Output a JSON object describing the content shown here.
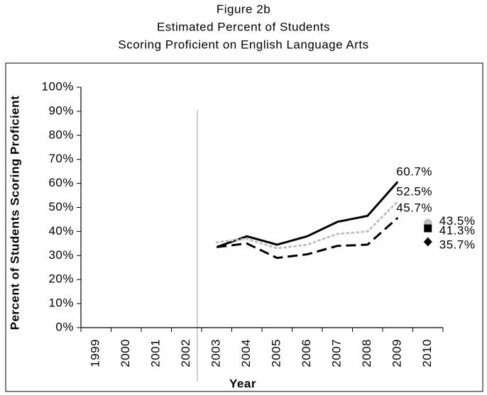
{
  "chart_data": {
    "type": "line",
    "title": [
      "Figure 2b",
      "Estimated Percent of Students",
      "Scoring Proficient on English Language Arts"
    ],
    "ylabel": "Percent of Students Scoring Proficient",
    "xlabel": "Year",
    "categories": [
      "1999",
      "2000",
      "2001",
      "2002",
      "2003",
      "2004",
      "2005",
      "2006",
      "2007",
      "2008",
      "2009",
      "2010"
    ],
    "ylim": [
      0,
      100
    ],
    "yticks": [
      {
        "value": 0,
        "label": "0%"
      },
      {
        "value": 10,
        "label": "10%"
      },
      {
        "value": 20,
        "label": "20%"
      },
      {
        "value": 30,
        "label": "30%"
      },
      {
        "value": 40,
        "label": "40%"
      },
      {
        "value": 50,
        "label": "50%"
      },
      {
        "value": 60,
        "label": "60%"
      },
      {
        "value": 70,
        "label": "70%"
      },
      {
        "value": 80,
        "label": "80%"
      },
      {
        "value": 90,
        "label": "90%"
      },
      {
        "value": 100,
        "label": "100%"
      }
    ],
    "series": [
      {
        "color": "#000000",
        "dash": "solid",
        "values": [
          null,
          null,
          null,
          null,
          33.5,
          38,
          34.5,
          38,
          44,
          46.5,
          60.7,
          null
        ],
        "value_labels": [
          null,
          null,
          null,
          null,
          null,
          null,
          null,
          null,
          null,
          null,
          "60.7%",
          null
        ]
      },
      {
        "color": "#bfbfbf",
        "dash": "dotted",
        "values": [
          null,
          null,
          null,
          null,
          35.5,
          37,
          33,
          34.5,
          39,
          40,
          52.5,
          null
        ],
        "value_labels": [
          null,
          null,
          null,
          null,
          null,
          null,
          null,
          null,
          null,
          null,
          "52.5%",
          null
        ]
      },
      {
        "color": "#000000",
        "dash": "dashed",
        "values": [
          null,
          null,
          null,
          null,
          33.5,
          35,
          29,
          30.5,
          34,
          34.5,
          45.7,
          null
        ],
        "value_labels": [
          null,
          null,
          null,
          null,
          null,
          null,
          null,
          null,
          null,
          null,
          "45.7%",
          null
        ]
      },
      {
        "color": "#bfbfbf",
        "marker": "circle",
        "values": [
          null,
          null,
          null,
          null,
          null,
          null,
          null,
          null,
          null,
          null,
          null,
          43.5
        ],
        "value_labels": [
          null,
          null,
          null,
          null,
          null,
          null,
          null,
          null,
          null,
          null,
          null,
          "43.5%"
        ]
      },
      {
        "color": "#000000",
        "marker": "square",
        "values": [
          null,
          null,
          null,
          null,
          null,
          null,
          null,
          null,
          null,
          null,
          null,
          41.3
        ],
        "value_labels": [
          null,
          null,
          null,
          null,
          null,
          null,
          null,
          null,
          null,
          null,
          null,
          "41.3%"
        ]
      },
      {
        "color": "#000000",
        "marker": "diamond",
        "values": [
          null,
          null,
          null,
          null,
          null,
          null,
          null,
          null,
          null,
          null,
          null,
          35.7
        ],
        "value_labels": [
          null,
          null,
          null,
          null,
          null,
          null,
          null,
          null,
          null,
          null,
          null,
          "35.7%"
        ]
      }
    ]
  }
}
